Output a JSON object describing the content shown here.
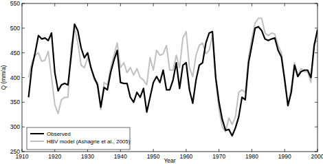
{
  "chart_data": {
    "type": "line",
    "x_label": "Year",
    "y_label": "Q (mm/a)",
    "x": [
      1912,
      1913,
      1914,
      1915,
      1916,
      1917,
      1918,
      1919,
      1920,
      1921,
      1922,
      1923,
      1924,
      1925,
      1926,
      1927,
      1928,
      1929,
      1930,
      1931,
      1932,
      1933,
      1934,
      1935,
      1936,
      1937,
      1938,
      1939,
      1940,
      1941,
      1942,
      1943,
      1944,
      1945,
      1946,
      1947,
      1948,
      1949,
      1950,
      1951,
      1952,
      1953,
      1954,
      1955,
      1956,
      1957,
      1958,
      1959,
      1960,
      1961,
      1962,
      1963,
      1964,
      1965,
      1966,
      1967,
      1968,
      1969,
      1970,
      1971,
      1972,
      1973,
      1974,
      1975,
      1976,
      1977,
      1978,
      1979,
      1980,
      1981,
      1982,
      1983,
      1984,
      1985,
      1986,
      1987,
      1988,
      1989,
      1990,
      1991,
      1992,
      1993,
      1994,
      1995,
      1996,
      1997,
      1998,
      1999,
      2000
    ],
    "series": [
      {
        "name": "Observed",
        "color": "#000000",
        "values": [
          360,
          420,
          450,
          485,
          478,
          480,
          475,
          490,
          410,
          373,
          385,
          388,
          385,
          445,
          508,
          495,
          460,
          440,
          450,
          420,
          400,
          385,
          340,
          380,
          375,
          410,
          435,
          455,
          390,
          388,
          388,
          360,
          350,
          370,
          360,
          378,
          330,
          360,
          390,
          402,
          390,
          415,
          375,
          375,
          395,
          430,
          378,
          425,
          430,
          375,
          348,
          395,
          425,
          430,
          470,
          490,
          493,
          400,
          350,
          315,
          293,
          295,
          282,
          298,
          320,
          360,
          355,
          430,
          465,
          500,
          503,
          495,
          478,
          475,
          478,
          480,
          455,
          442,
          395,
          343,
          370,
          425,
          402,
          412,
          415,
          415,
          400,
          465,
          497
        ]
      },
      {
        "name": "HBV model (Ashagrie et al., 2005)",
        "color": "#c0c0c0",
        "values": [
          400,
          430,
          445,
          450,
          433,
          435,
          453,
          400,
          345,
          327,
          355,
          360,
          360,
          465,
          500,
          470,
          425,
          420,
          440,
          420,
          395,
          390,
          335,
          390,
          385,
          420,
          445,
          470,
          420,
          430,
          410,
          420,
          405,
          418,
          400,
          395,
          385,
          440,
          415,
          455,
          445,
          448,
          465,
          415,
          415,
          445,
          420,
          480,
          493,
          420,
          402,
          445,
          465,
          470,
          448,
          455,
          485,
          395,
          335,
          300,
          290,
          318,
          305,
          320,
          370,
          375,
          370,
          440,
          480,
          510,
          520,
          520,
          490,
          485,
          490,
          488,
          465,
          450,
          400,
          345,
          378,
          430,
          405,
          418,
          412,
          412,
          390,
          470,
          475
        ]
      }
    ],
    "xlim": [
      1910,
      2000
    ],
    "ylim": [
      250,
      550
    ],
    "xticks": [
      1910,
      1920,
      1930,
      1940,
      1950,
      1960,
      1970,
      1980,
      1990,
      2000
    ],
    "yticks": [
      250,
      300,
      350,
      400,
      450,
      500,
      550
    ],
    "grid": false,
    "legend": "lower left"
  }
}
